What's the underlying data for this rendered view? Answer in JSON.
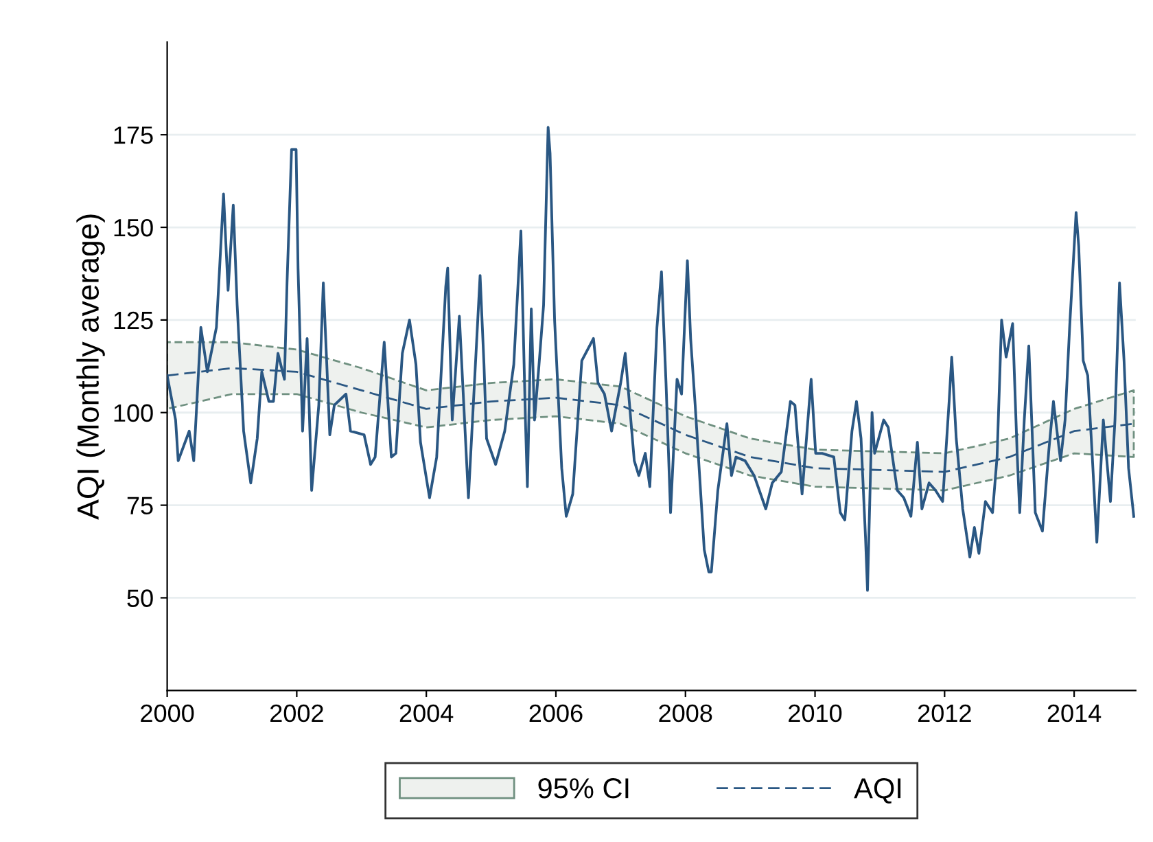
{
  "chart_data": {
    "type": "line",
    "ylabel": "AQI (Monthly average)",
    "xlim": [
      2000,
      2014.95
    ],
    "xticks": [
      2000,
      2002,
      2004,
      2006,
      2008,
      2010,
      2012,
      2014
    ],
    "ylim": [
      25,
      200
    ],
    "yticks": [
      50,
      75,
      100,
      125,
      150,
      175
    ],
    "grid": "y",
    "legend": "bottom",
    "annotations": [
      "95% CI"
    ],
    "series": [
      {
        "color": "#2a5783",
        "line_style": "solid",
        "x": [
          2000.0,
          2000.13,
          2000.17,
          2000.34,
          2000.41,
          2000.52,
          2000.62,
          2000.76,
          2000.8,
          2000.87,
          2000.94,
          2001.02,
          2001.08,
          2001.18,
          2001.29,
          2001.39,
          2001.46,
          2001.57,
          2001.64,
          2001.71,
          2001.81,
          2001.85,
          2001.92,
          2001.99,
          2002.02,
          2002.09,
          2002.16,
          2002.23,
          2002.34,
          2002.41,
          2002.51,
          2002.58,
          2002.76,
          2002.83,
          2003.04,
          2003.14,
          2003.21,
          2003.35,
          2003.46,
          2003.53,
          2003.63,
          2003.74,
          2003.84,
          2003.91,
          2004.05,
          2004.16,
          2004.3,
          2004.33,
          2004.4,
          2004.51,
          2004.65,
          2004.83,
          2004.89,
          2004.93,
          2005.07,
          2005.21,
          2005.35,
          2005.46,
          2005.53,
          2005.56,
          2005.62,
          2005.67,
          2005.74,
          2005.81,
          2005.88,
          2005.91,
          2005.98,
          2006.09,
          2006.16,
          2006.26,
          2006.4,
          2006.58,
          2006.65,
          2006.75,
          2006.86,
          2007.0,
          2007.07,
          2007.21,
          2007.28,
          2007.38,
          2007.45,
          2007.56,
          2007.63,
          2007.7,
          2007.77,
          2007.87,
          2007.94,
          2008.03,
          2008.08,
          2008.15,
          2008.29,
          2008.36,
          2008.4,
          2008.5,
          2008.64,
          2008.71,
          2008.78,
          2008.92,
          2009.06,
          2009.24,
          2009.34,
          2009.48,
          2009.62,
          2009.69,
          2009.8,
          2009.94,
          2010.01,
          2010.11,
          2010.29,
          2010.39,
          2010.46,
          2010.57,
          2010.64,
          2010.71,
          2010.78,
          2010.81,
          2010.88,
          2010.92,
          2011.06,
          2011.13,
          2011.27,
          2011.37,
          2011.48,
          2011.58,
          2011.65,
          2011.76,
          2011.86,
          2011.97,
          2012.07,
          2012.11,
          2012.18,
          2012.28,
          2012.39,
          2012.46,
          2012.53,
          2012.63,
          2012.74,
          2012.81,
          2012.88,
          2012.95,
          2013.05,
          2013.12,
          2013.16,
          2013.23,
          2013.3,
          2013.4,
          2013.51,
          2013.61,
          2013.68,
          2013.79,
          2013.86,
          2013.93,
          2014.03,
          2014.07,
          2014.14,
          2014.21,
          2014.28,
          2014.35,
          2014.45,
          2014.56,
          2014.63,
          2014.7,
          2014.77,
          2014.84,
          2014.92
        ],
        "values": [
          110,
          98,
          87,
          95,
          87,
          123,
          111,
          123,
          136,
          159,
          133,
          156,
          129,
          95,
          81,
          93,
          111,
          103,
          103,
          116,
          109,
          135,
          171,
          171,
          139,
          95,
          120,
          79,
          102,
          135,
          94,
          102,
          105,
          95,
          94,
          86,
          88,
          119,
          88,
          89,
          116,
          125,
          113,
          92,
          77,
          88,
          134,
          139,
          98,
          126,
          77,
          137,
          113,
          93,
          86,
          95,
          113,
          149,
          98,
          80,
          128,
          98,
          113,
          129,
          177,
          170,
          125,
          85,
          72,
          78,
          114,
          120,
          108,
          105,
          95,
          108,
          116,
          87,
          83,
          89,
          80,
          123,
          138,
          108,
          73,
          109,
          105,
          141,
          120,
          102,
          63,
          57,
          57,
          79,
          97,
          83,
          88,
          87,
          83,
          74,
          81,
          84,
          103,
          102,
          78,
          109,
          89,
          89,
          88,
          73,
          71,
          95,
          103,
          93,
          66,
          52,
          100,
          89,
          98,
          96,
          79,
          77,
          72,
          92,
          74,
          81,
          79,
          76,
          103,
          115,
          93,
          74,
          61,
          69,
          62,
          76,
          73,
          88,
          125,
          115,
          124,
          89,
          73,
          98,
          118,
          73,
          68,
          90,
          103,
          87,
          98,
          123,
          154,
          145,
          114,
          110,
          88,
          65,
          98,
          76,
          98,
          135,
          114,
          85,
          72
        ]
      },
      {
        "name": "AQI",
        "color": "#2a5783",
        "line_style": "dashed",
        "x": [
          2000,
          2001,
          2002,
          2003,
          2004,
          2005,
          2006,
          2007,
          2008,
          2009,
          2010,
          2011,
          2012,
          2013,
          2014,
          2014.92
        ],
        "values": [
          110,
          112,
          111,
          106,
          101,
          103,
          104,
          102,
          94,
          88,
          85,
          84.5,
          84,
          88,
          95,
          97
        ],
        "lower": [
          101,
          105,
          105,
          100,
          96,
          98,
          99,
          97,
          89,
          83,
          80,
          79.5,
          79,
          83,
          89,
          88
        ],
        "upper": [
          119,
          119,
          117,
          112,
          106,
          108,
          109,
          107,
          99,
          93,
          90,
          89.5,
          89,
          93,
          101,
          106
        ]
      }
    ]
  }
}
